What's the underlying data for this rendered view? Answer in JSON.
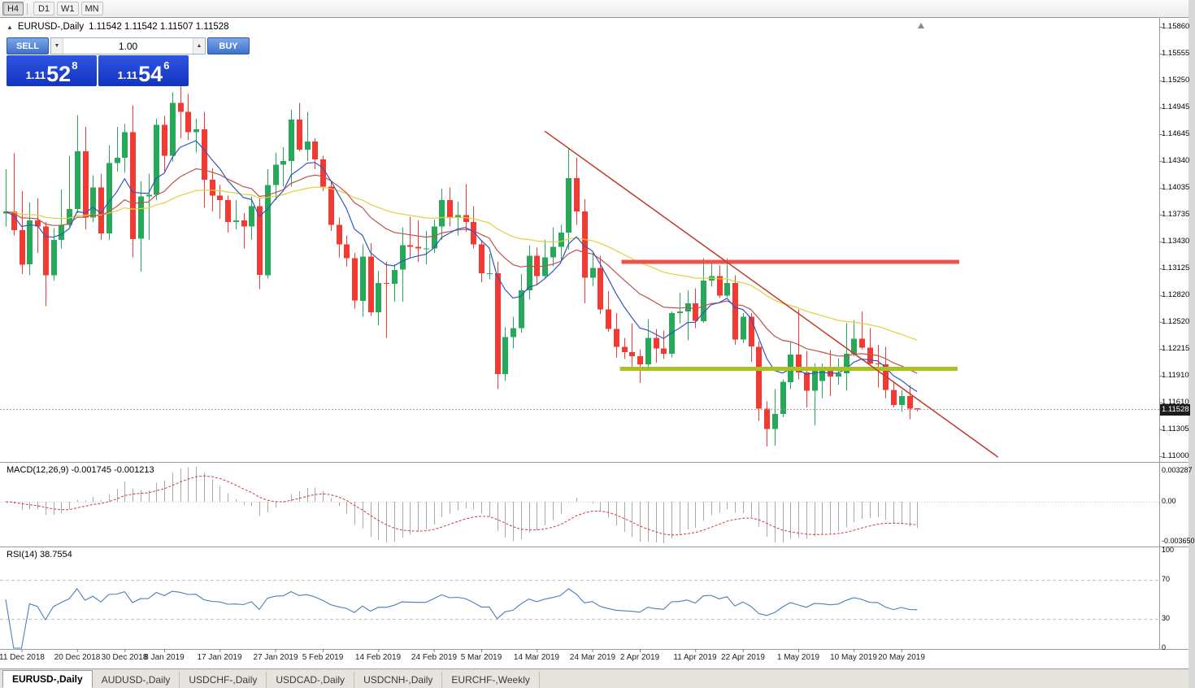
{
  "toolbar": {
    "timeframes": [
      "H4",
      "D1",
      "W1",
      "MN"
    ]
  },
  "icons": {
    "collapse": "▲",
    "spin_down": "▼",
    "spin_up": "▲"
  },
  "chart_header": {
    "title": "EURUSD-,Daily",
    "ohlc": "1.11542 1.11542 1.11507 1.11528"
  },
  "trade_panel": {
    "sell_label": "SELL",
    "buy_label": "BUY",
    "volume": "1.00",
    "sell_price": {
      "prefix": "1.11",
      "big": "52",
      "sup": "8"
    },
    "buy_price": {
      "prefix": "1.11",
      "big": "54",
      "sup": "6"
    }
  },
  "price_badge": "1.11528",
  "panels": {
    "macd_label": "MACD(12,26,9) -0.001745 -0.001213",
    "rsi_label": "RSI(14) 38.7554"
  },
  "axes": {
    "price_labels": [
      "1.15860",
      "1.15555",
      "1.15250",
      "1.14945",
      "1.14645",
      "1.14340",
      "1.14035",
      "1.13735",
      "1.13430",
      "1.13125",
      "1.12820",
      "1.12520",
      "1.12215",
      "1.11910",
      "1.11610",
      "1.11305",
      "1.11000"
    ],
    "macd_labels": [
      "0.003287",
      "0.00",
      "-0.003650"
    ],
    "rsi_labels": [
      "100",
      "70",
      "30",
      "0"
    ],
    "date_labels": [
      {
        "t": "11 Dec 2018",
        "i": 2
      },
      {
        "t": "20 Dec 2018",
        "i": 9
      },
      {
        "t": "30 Dec 2018",
        "i": 15
      },
      {
        "t": "8 Jan 2019",
        "i": 20
      },
      {
        "t": "17 Jan 2019",
        "i": 27
      },
      {
        "t": "27 Jan 2019",
        "i": 34
      },
      {
        "t": "5 Feb 2019",
        "i": 40
      },
      {
        "t": "14 Feb 2019",
        "i": 47
      },
      {
        "t": "24 Feb 2019",
        "i": 54
      },
      {
        "t": "5 Mar 2019",
        "i": 60
      },
      {
        "t": "14 Mar 2019",
        "i": 67
      },
      {
        "t": "24 Mar 2019",
        "i": 74
      },
      {
        "t": "2 Apr 2019",
        "i": 80
      },
      {
        "t": "11 Apr 2019",
        "i": 87
      },
      {
        "t": "22 Apr 2019",
        "i": 93
      },
      {
        "t": "1 May 2019",
        "i": 100
      },
      {
        "t": "10 May 2019",
        "i": 107
      },
      {
        "t": "20 May 2019",
        "i": 113
      }
    ]
  },
  "tabs": [
    {
      "label": "EURUSD-,Daily",
      "active": true
    },
    {
      "label": "AUDUSD-,Daily",
      "active": false
    },
    {
      "label": "USDCHF-,Daily",
      "active": false
    },
    {
      "label": "USDCAD-,Daily",
      "active": false
    },
    {
      "label": "USDCNH-,Daily",
      "active": false
    },
    {
      "label": "EURCHF-,Weekly",
      "active": false
    }
  ],
  "chart_data": {
    "type": "candlestick",
    "symbol": "EURUSD",
    "timeframe": "Daily",
    "y_axis": {
      "top": 1.1586,
      "bottom": 1.11
    },
    "current_price": 1.11528,
    "colors": {
      "up": "#26a959",
      "down": "#f23a32",
      "macd_hist": "#a9a9a9",
      "macd_signal": "#cc3c3c",
      "rsi": "#4a7fba"
    },
    "moving_averages": [
      {
        "period": 8,
        "color": "#3454c4"
      },
      {
        "period": 21,
        "color": "#c0504d"
      },
      {
        "period": 50,
        "color": "#e3cf3c"
      }
    ],
    "indicators": {
      "macd": {
        "fast": 12,
        "slow": 26,
        "signal": 9,
        "value": -0.001745,
        "signal_value": -0.001213
      },
      "rsi": {
        "period": 14,
        "value": 38.7554
      }
    },
    "overlays": {
      "resistance": {
        "price": 1.132,
        "i1": 77.7,
        "i2": 120.3,
        "color": "#f0524a",
        "width": 5
      },
      "support": {
        "price": 1.1199,
        "i1": 77.5,
        "i2": 120.1,
        "color": "#a8c222",
        "width": 5
      },
      "trendline": {
        "i1": 68,
        "p1": 1.1468,
        "i2": 125.2,
        "p2": 1.1099,
        "color": "#c0392f",
        "width": 1.5
      }
    },
    "candles": [
      [
        1.1375,
        1.1425,
        1.136,
        1.1377
      ],
      [
        1.1377,
        1.1443,
        1.135,
        1.1356
      ],
      [
        1.1356,
        1.14,
        1.1306,
        1.1317
      ],
      [
        1.1317,
        1.1387,
        1.1305,
        1.1367
      ],
      [
        1.1367,
        1.1392,
        1.133,
        1.136
      ],
      [
        1.136,
        1.1365,
        1.127,
        1.1305
      ],
      [
        1.1305,
        1.1358,
        1.1299,
        1.1345
      ],
      [
        1.1345,
        1.1402,
        1.1335,
        1.1362
      ],
      [
        1.1362,
        1.144,
        1.136,
        1.138
      ],
      [
        1.138,
        1.1486,
        1.1375,
        1.1445
      ],
      [
        1.1445,
        1.1473,
        1.1357,
        1.137
      ],
      [
        1.137,
        1.1418,
        1.1365,
        1.1404
      ],
      [
        1.1404,
        1.142,
        1.1345,
        1.1352
      ],
      [
        1.1352,
        1.1452,
        1.1345,
        1.1432
      ],
      [
        1.1432,
        1.1473,
        1.1422,
        1.1438
      ],
      [
        1.1438,
        1.1476,
        1.1421,
        1.1467
      ],
      [
        1.1467,
        1.1497,
        1.1325,
        1.1346
      ],
      [
        1.1346,
        1.1411,
        1.1309,
        1.1394
      ],
      [
        1.1394,
        1.142,
        1.1345,
        1.1396
      ],
      [
        1.1396,
        1.1482,
        1.139,
        1.1475
      ],
      [
        1.1475,
        1.1485,
        1.1422,
        1.144
      ],
      [
        1.144,
        1.1512,
        1.1433,
        1.15
      ],
      [
        1.15,
        1.1522,
        1.146,
        1.149
      ],
      [
        1.149,
        1.151,
        1.1458,
        1.1467
      ],
      [
        1.1467,
        1.1482,
        1.1444,
        1.147
      ],
      [
        1.147,
        1.149,
        1.1381,
        1.1413
      ],
      [
        1.1413,
        1.1426,
        1.1377,
        1.1395
      ],
      [
        1.1395,
        1.1407,
        1.1369,
        1.139
      ],
      [
        1.139,
        1.1395,
        1.1353,
        1.1365
      ],
      [
        1.1365,
        1.139,
        1.1357,
        1.1367
      ],
      [
        1.1367,
        1.1375,
        1.1335,
        1.136
      ],
      [
        1.136,
        1.1394,
        1.1345,
        1.1383
      ],
      [
        1.1383,
        1.1392,
        1.1289,
        1.1305
      ],
      [
        1.1305,
        1.1425,
        1.1301,
        1.1407
      ],
      [
        1.1407,
        1.1444,
        1.139,
        1.143
      ],
      [
        1.143,
        1.145,
        1.1405,
        1.1434
      ],
      [
        1.1434,
        1.1492,
        1.1405,
        1.1481
      ],
      [
        1.1481,
        1.15,
        1.1445,
        1.1447
      ],
      [
        1.1447,
        1.149,
        1.1434,
        1.1456
      ],
      [
        1.1456,
        1.146,
        1.1425,
        1.1436
      ],
      [
        1.1436,
        1.144,
        1.14,
        1.1405
      ],
      [
        1.1405,
        1.141,
        1.1355,
        1.1362
      ],
      [
        1.1362,
        1.137,
        1.1325,
        1.134
      ],
      [
        1.134,
        1.135,
        1.1315,
        1.1324
      ],
      [
        1.1324,
        1.133,
        1.1267,
        1.1276
      ],
      [
        1.1276,
        1.134,
        1.1258,
        1.1326
      ],
      [
        1.1326,
        1.1341,
        1.1259,
        1.1263
      ],
      [
        1.1263,
        1.131,
        1.1248,
        1.1296
      ],
      [
        1.1296,
        1.132,
        1.1234,
        1.1295
      ],
      [
        1.1295,
        1.1317,
        1.1275,
        1.1311
      ],
      [
        1.1311,
        1.1359,
        1.1275,
        1.1339
      ],
      [
        1.1339,
        1.1371,
        1.1324,
        1.1337
      ],
      [
        1.1337,
        1.1367,
        1.132,
        1.1335
      ],
      [
        1.1335,
        1.1355,
        1.1317,
        1.1335
      ],
      [
        1.1335,
        1.1368,
        1.133,
        1.136
      ],
      [
        1.136,
        1.1403,
        1.1345,
        1.139
      ],
      [
        1.139,
        1.1404,
        1.136,
        1.137
      ],
      [
        1.137,
        1.1388,
        1.135,
        1.1373
      ],
      [
        1.1373,
        1.1408,
        1.1354,
        1.1365
      ],
      [
        1.1365,
        1.1383,
        1.1335,
        1.134
      ],
      [
        1.134,
        1.1345,
        1.1297,
        1.1307
      ],
      [
        1.1307,
        1.1329,
        1.13,
        1.1307
      ],
      [
        1.1307,
        1.132,
        1.1176,
        1.1193
      ],
      [
        1.1193,
        1.1246,
        1.1185,
        1.1235
      ],
      [
        1.1235,
        1.1258,
        1.1222,
        1.1245
      ],
      [
        1.1245,
        1.1306,
        1.124,
        1.1288
      ],
      [
        1.1288,
        1.1339,
        1.1277,
        1.1327
      ],
      [
        1.1327,
        1.1336,
        1.1294,
        1.1304
      ],
      [
        1.1304,
        1.1345,
        1.1301,
        1.1325
      ],
      [
        1.1325,
        1.1359,
        1.1315,
        1.1337
      ],
      [
        1.1337,
        1.1362,
        1.1321,
        1.1353
      ],
      [
        1.1353,
        1.1448,
        1.1334,
        1.1415
      ],
      [
        1.1415,
        1.1438,
        1.1362,
        1.1377
      ],
      [
        1.1377,
        1.1391,
        1.1273,
        1.1302
      ],
      [
        1.1302,
        1.133,
        1.1293,
        1.1313
      ],
      [
        1.1313,
        1.1327,
        1.1261,
        1.1266
      ],
      [
        1.1266,
        1.1287,
        1.1241,
        1.1244
      ],
      [
        1.1244,
        1.1262,
        1.1212,
        1.1224
      ],
      [
        1.1224,
        1.1234,
        1.121,
        1.1218
      ],
      [
        1.1218,
        1.125,
        1.1199,
        1.1213
      ],
      [
        1.1213,
        1.1221,
        1.1183,
        1.1204
      ],
      [
        1.1204,
        1.1255,
        1.12,
        1.1234
      ],
      [
        1.1234,
        1.1244,
        1.1206,
        1.1222
      ],
      [
        1.1222,
        1.1242,
        1.121,
        1.1216
      ],
      [
        1.1216,
        1.1264,
        1.1212,
        1.1262
      ],
      [
        1.1262,
        1.1285,
        1.125,
        1.1264
      ],
      [
        1.1264,
        1.1288,
        1.1231,
        1.1273
      ],
      [
        1.1273,
        1.129,
        1.1245,
        1.1253
      ],
      [
        1.1253,
        1.1324,
        1.1251,
        1.1299
      ],
      [
        1.1299,
        1.132,
        1.1292,
        1.1304
      ],
      [
        1.1304,
        1.1316,
        1.1279,
        1.1282
      ],
      [
        1.1282,
        1.1324,
        1.128,
        1.1296
      ],
      [
        1.1296,
        1.1305,
        1.1226,
        1.1232
      ],
      [
        1.1232,
        1.1262,
        1.1228,
        1.1258
      ],
      [
        1.1258,
        1.1262,
        1.1207,
        1.1224
      ],
      [
        1.1224,
        1.123,
        1.114,
        1.1154
      ],
      [
        1.1154,
        1.1162,
        1.1111,
        1.1131
      ],
      [
        1.1131,
        1.1176,
        1.1112,
        1.1148
      ],
      [
        1.1148,
        1.1187,
        1.1144,
        1.1184
      ],
      [
        1.1184,
        1.1229,
        1.1176,
        1.1215
      ],
      [
        1.1215,
        1.1266,
        1.1187,
        1.1195
      ],
      [
        1.1195,
        1.1219,
        1.1155,
        1.1174
      ],
      [
        1.1174,
        1.1205,
        1.1135,
        1.12
      ],
      [
        1.1185,
        1.1205,
        1.1166,
        1.1198
      ],
      [
        1.1198,
        1.122,
        1.1168,
        1.119
      ],
      [
        1.119,
        1.1211,
        1.1181,
        1.1194
      ],
      [
        1.1194,
        1.1251,
        1.1174,
        1.1216
      ],
      [
        1.1216,
        1.1254,
        1.1213,
        1.1233
      ],
      [
        1.1233,
        1.1264,
        1.1221,
        1.1223
      ],
      [
        1.1223,
        1.1245,
        1.1203,
        1.1205
      ],
      [
        1.1205,
        1.1226,
        1.1178,
        1.1204
      ],
      [
        1.1204,
        1.1224,
        1.1166,
        1.1175
      ],
      [
        1.1175,
        1.1184,
        1.1155,
        1.1158
      ],
      [
        1.1158,
        1.1175,
        1.115,
        1.1168
      ],
      [
        1.1168,
        1.118,
        1.1142,
        1.1154
      ],
      [
        1.11542,
        1.11542,
        1.11507,
        1.11528
      ]
    ]
  }
}
